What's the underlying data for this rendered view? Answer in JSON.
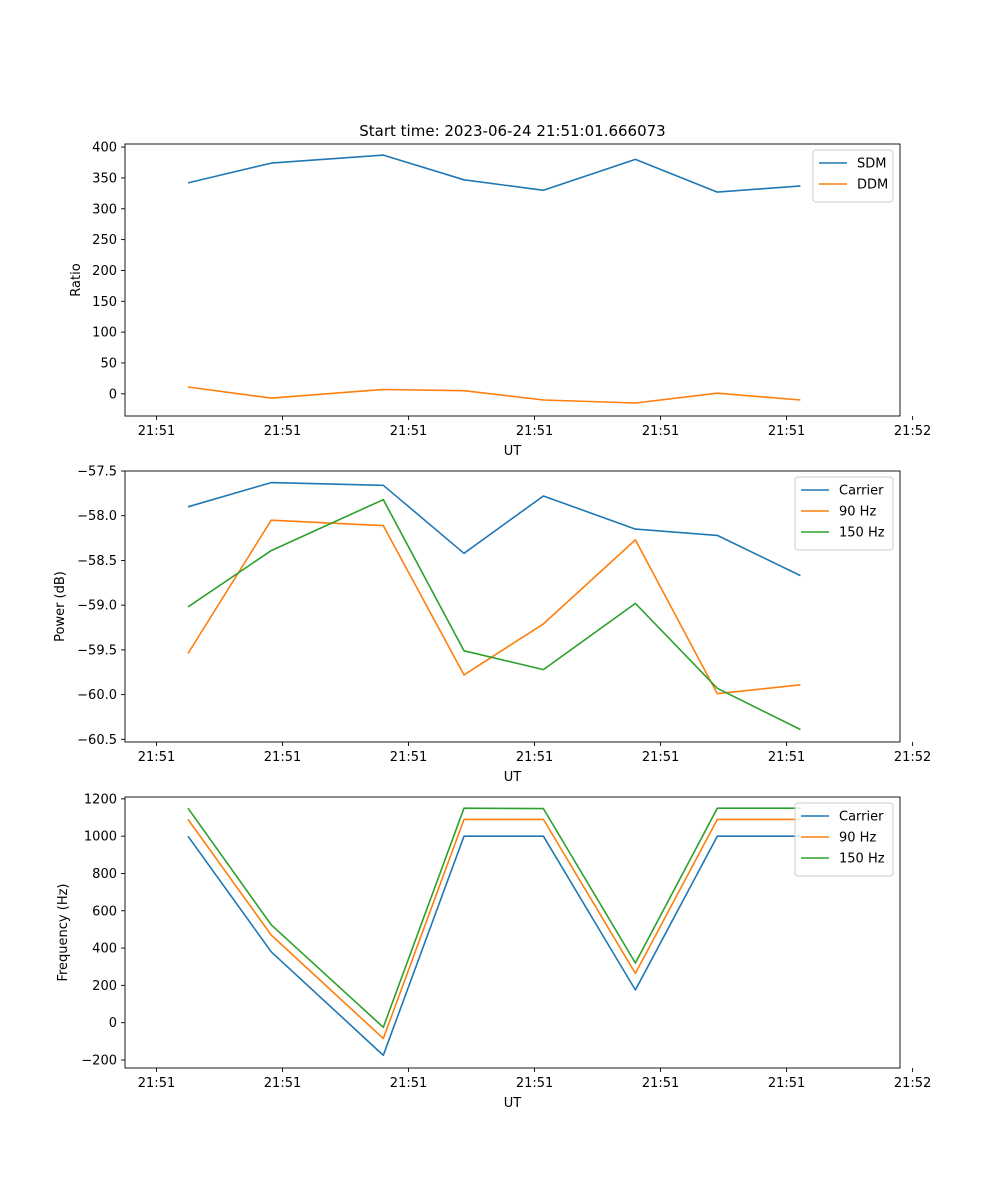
{
  "figure": {
    "title": "Start time: 2023-06-24 21:51:01.666073"
  },
  "chart_data": [
    {
      "type": "line",
      "xlabel": "UT",
      "ylabel": "Ratio",
      "x_tick_labels": [
        "21:51",
        "21:51",
        "21:51",
        "21:51",
        "21:51",
        "21:51",
        "21:52"
      ],
      "xlim": [
        -0.25,
        5.9
      ],
      "x": [
        0.25,
        0.91,
        1.8,
        2.44,
        3.07,
        3.8,
        4.45,
        5.11
      ],
      "ylim": [
        -36,
        405
      ],
      "yticks": [
        0,
        50,
        100,
        150,
        200,
        250,
        300,
        350,
        400
      ],
      "legend_position": "upper right",
      "grid": false,
      "series": [
        {
          "name": "SDM",
          "color": "#1f77b4",
          "values": [
            342,
            374,
            387,
            347,
            330,
            380,
            327,
            337
          ]
        },
        {
          "name": "DDM",
          "color": "#ff7f0e",
          "values": [
            11,
            -7,
            7,
            5,
            -10,
            -15,
            1,
            -10
          ]
        }
      ]
    },
    {
      "type": "line",
      "xlabel": "UT",
      "ylabel": "Power (dB)",
      "x_tick_labels": [
        "21:51",
        "21:51",
        "21:51",
        "21:51",
        "21:51",
        "21:51",
        "21:52"
      ],
      "xlim": [
        -0.25,
        5.9
      ],
      "x": [
        0.25,
        0.91,
        1.8,
        2.44,
        3.07,
        3.8,
        4.45,
        5.11
      ],
      "ylim": [
        -60.53,
        -57.5
      ],
      "yticks": [
        -60.5,
        -60.0,
        -59.5,
        -59.0,
        -58.5,
        -58.0,
        -57.5
      ],
      "ytick_labels": [
        "−60.5",
        "−60.0",
        "−59.5",
        "−59.0",
        "−58.5",
        "−58.0",
        "−57.5"
      ],
      "legend_position": "upper right",
      "grid": false,
      "series": [
        {
          "name": "Carrier",
          "color": "#1f77b4",
          "values": [
            -57.9,
            -57.63,
            -57.66,
            -58.42,
            -57.78,
            -58.15,
            -58.22,
            -58.67
          ]
        },
        {
          "name": "90 Hz",
          "color": "#ff7f0e",
          "values": [
            -59.54,
            -58.05,
            -58.11,
            -59.78,
            -59.21,
            -58.27,
            -59.99,
            -59.89
          ]
        },
        {
          "name": "150 Hz",
          "color": "#2ca02c",
          "values": [
            -59.02,
            -58.39,
            -57.82,
            -59.51,
            -59.72,
            -58.98,
            -59.93,
            -60.39
          ]
        }
      ]
    },
    {
      "type": "line",
      "xlabel": "UT",
      "ylabel": "Frequency (Hz)",
      "x_tick_labels": [
        "21:51",
        "21:51",
        "21:51",
        "21:51",
        "21:51",
        "21:51",
        "21:52"
      ],
      "xlim": [
        -0.25,
        5.9
      ],
      "x": [
        0.25,
        0.91,
        1.8,
        2.44,
        3.07,
        3.8,
        4.45,
        5.11
      ],
      "ylim": [
        -243,
        1210
      ],
      "yticks": [
        -200,
        0,
        200,
        400,
        600,
        800,
        1000,
        1200
      ],
      "ytick_labels": [
        "−200",
        "0",
        "200",
        "400",
        "600",
        "800",
        "1000",
        "1200"
      ],
      "legend_position": "upper right",
      "grid": false,
      "series": [
        {
          "name": "Carrier",
          "color": "#1f77b4",
          "values": [
            1000,
            380,
            -175,
            1000,
            1000,
            175,
            1000,
            1000
          ]
        },
        {
          "name": "90 Hz",
          "color": "#ff7f0e",
          "values": [
            1090,
            470,
            -85,
            1090,
            1090,
            265,
            1090,
            1090
          ]
        },
        {
          "name": "150 Hz",
          "color": "#2ca02c",
          "values": [
            1150,
            525,
            -25,
            1150,
            1148,
            320,
            1150,
            1150
          ]
        }
      ]
    }
  ]
}
